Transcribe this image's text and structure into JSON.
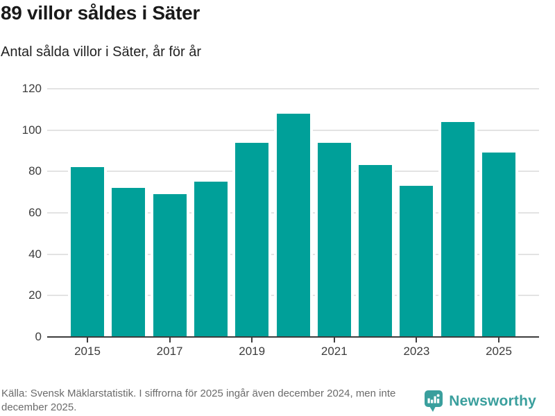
{
  "header": {
    "title": "89 villor såldes i Säter",
    "subtitle": "Antal sålda villor i Säter, år för år"
  },
  "chart_data": {
    "type": "bar",
    "title": "89 villor såldes i Säter",
    "subtitle": "Antal sålda villor i Säter, år för år",
    "categories": [
      2015,
      2016,
      2017,
      2018,
      2019,
      2020,
      2021,
      2022,
      2023,
      2024,
      2025
    ],
    "values": [
      82,
      72,
      69,
      75,
      94,
      108,
      94,
      83,
      73,
      104,
      89
    ],
    "xlabel": "",
    "ylabel": "",
    "ylim": [
      0,
      120
    ],
    "yticks": [
      0,
      20,
      40,
      60,
      80,
      100,
      120
    ],
    "xticks": [
      2015,
      2017,
      2019,
      2021,
      2023,
      2025
    ],
    "grid": "horizontal",
    "legend": "none",
    "bar_color": "#00a099"
  },
  "footer": {
    "source_text": "Källa: Svensk Mäklarstatistik. I siffrorna för 2025 ingår även december 2024, men inte december 2025.",
    "brand_name": "Newsworthy"
  },
  "colors": {
    "bar": "#00a099",
    "brand": "#3a9f9d",
    "grid": "#e3e3e3",
    "axis": "#3c3c3c",
    "title_text": "#1a1a1a",
    "footer_text": "#6b6b6b"
  }
}
